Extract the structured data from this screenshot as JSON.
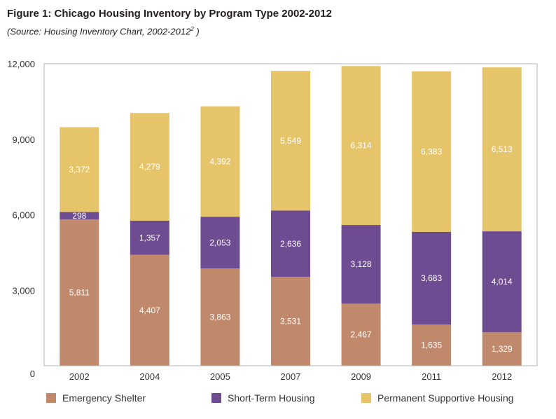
{
  "title_main": "Figure 1: Chicago Housing Inventory by Program Type 2002-2012",
  "subtitle_main": "(Source: Housing Inventory Chart, 2002-2012",
  "subtitle_sup": "2",
  "subtitle_end": " )",
  "colors": {
    "emergency": "#c0896b",
    "shortterm": "#6d4c92",
    "permanent": "#e6c56a",
    "frame": "#b5b5b5"
  },
  "chart_data": {
    "type": "bar",
    "stacked": true,
    "title": "Figure 1: Chicago Housing Inventory by Program Type 2002-2012",
    "categories": [
      "2002",
      "2004",
      "2005",
      "2007",
      "2009",
      "2011",
      "2012"
    ],
    "series": [
      {
        "name": "Emergency Shelter",
        "values": [
          5811,
          4407,
          3863,
          3531,
          2467,
          1635,
          1329
        ],
        "labels": [
          "5,811",
          "4,407",
          "3,863",
          "3,531",
          "2,467",
          "1,635",
          "1,329"
        ]
      },
      {
        "name": "Short-Term Housing",
        "values": [
          298,
          1357,
          2053,
          2636,
          3128,
          3683,
          4014
        ],
        "labels": [
          "298",
          "1,357",
          "2,053",
          "2,636",
          "3,128",
          "3,683",
          "4,014"
        ]
      },
      {
        "name": "Permanent Supportive Housing",
        "values": [
          3372,
          4279,
          4392,
          5549,
          6314,
          6383,
          6513
        ],
        "labels": [
          "3,372",
          "4,279",
          "4,392",
          "5,549",
          "6,314",
          "6,383",
          "6,513"
        ]
      }
    ],
    "ylim": [
      0,
      12000
    ],
    "yticks": [
      0,
      3000,
      6000,
      9000,
      12000
    ],
    "ytick_labels": [
      "0",
      "3,000",
      "6,000",
      "9,000",
      "12,000"
    ],
    "grid": false,
    "legend_position": "bottom"
  }
}
